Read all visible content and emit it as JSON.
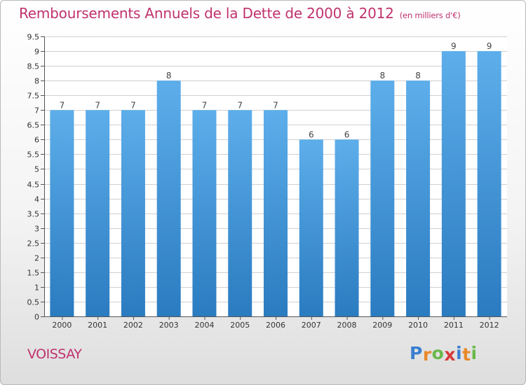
{
  "header": {
    "title": "Remboursements Annuels de la Dette de 2000 à 2012",
    "subtitle": "(en milliers d'€)"
  },
  "footer": {
    "place": "VOISSAY",
    "logo_text": "Proxiti",
    "logo_letters": [
      {
        "ch": "P",
        "color": "#3a7fd0"
      },
      {
        "ch": "r",
        "color": "#e8892b"
      },
      {
        "ch": "o",
        "color": "#6bb84a"
      },
      {
        "ch": "x",
        "color": "#d63a3a"
      },
      {
        "ch": "i",
        "color": "#3a7fd0"
      },
      {
        "ch": "t",
        "color": "#e8892b"
      },
      {
        "ch": "i",
        "color": "#6bb84a"
      }
    ]
  },
  "colors": {
    "title": "#c0326e",
    "bar_top": "#5daeea",
    "bar_bottom": "#2a7bc0",
    "grid": "#d0d0d0",
    "axis": "#555555"
  },
  "chart_data": {
    "type": "bar",
    "categories": [
      "2000",
      "2001",
      "2002",
      "2003",
      "2004",
      "2005",
      "2006",
      "2007",
      "2008",
      "2009",
      "2010",
      "2011",
      "2012"
    ],
    "values": [
      7,
      7,
      7,
      8,
      7,
      7,
      7,
      6,
      6,
      8,
      8,
      9,
      9
    ],
    "data_labels": [
      "7",
      "7",
      "7",
      "8",
      "7",
      "7",
      "7",
      "6",
      "6",
      "8",
      "8",
      "9",
      "9"
    ],
    "yticks": [
      "0",
      "0.5",
      "1",
      "1.5",
      "2",
      "2.5",
      "3",
      "3.5",
      "4",
      "4.5",
      "5",
      "5.5",
      "6",
      "6.5",
      "7",
      "7.5",
      "8",
      "8.5",
      "9",
      "9.5"
    ],
    "ylim": [
      0,
      9.5
    ],
    "grid": true,
    "title": "Remboursements Annuels de la Dette de 2000 à 2012",
    "xlabel": "",
    "ylabel": ""
  }
}
